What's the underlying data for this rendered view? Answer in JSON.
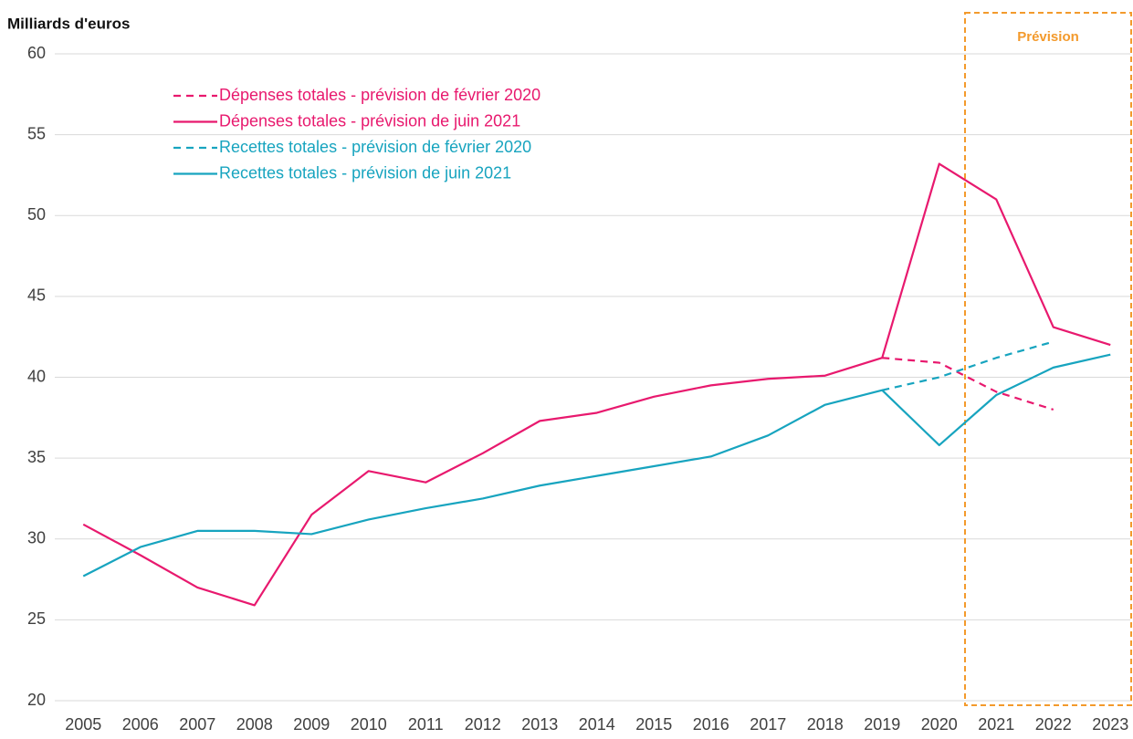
{
  "chart_data": {
    "type": "line",
    "ylabel": "Milliards d'euros",
    "forecast_label": "Prévision",
    "forecast_color": "#f39a2c",
    "categories": [
      "2005",
      "2006",
      "2007",
      "2008",
      "2009",
      "2010",
      "2011",
      "2012",
      "2013",
      "2014",
      "2015",
      "2016",
      "2017",
      "2018",
      "2019",
      "2020",
      "2021",
      "2022",
      "2023"
    ],
    "series": [
      {
        "name": "Dépenses totales - prévision de février 2020",
        "color": "#e8196e",
        "style": "dashed",
        "values": [
          null,
          null,
          null,
          null,
          null,
          null,
          null,
          null,
          null,
          null,
          null,
          null,
          null,
          null,
          41.2,
          40.9,
          39.1,
          38.0,
          null
        ]
      },
      {
        "name": "Dépenses totales - prévision de juin 2021",
        "color": "#e8196e",
        "style": "solid",
        "values": [
          30.9,
          29.0,
          27.0,
          25.9,
          31.5,
          34.2,
          33.5,
          35.3,
          37.3,
          37.8,
          38.8,
          39.5,
          39.9,
          40.1,
          41.2,
          53.2,
          51.0,
          43.1,
          42.0
        ]
      },
      {
        "name": "Recettes totales - prévision de février 2020",
        "color": "#17a4bf",
        "style": "dashed",
        "values": [
          null,
          null,
          null,
          null,
          null,
          null,
          null,
          null,
          null,
          null,
          null,
          null,
          null,
          null,
          39.2,
          40.0,
          41.2,
          42.2,
          null
        ]
      },
      {
        "name": "Recettes totales - prévision de juin 2021",
        "color": "#17a4bf",
        "style": "solid",
        "values": [
          27.7,
          29.5,
          30.5,
          30.5,
          30.3,
          31.2,
          31.9,
          32.5,
          33.3,
          33.9,
          34.5,
          35.1,
          36.4,
          38.3,
          39.2,
          35.8,
          38.9,
          40.6,
          41.4
        ]
      }
    ],
    "ylim": [
      20,
      60
    ],
    "yticks": [
      20,
      25,
      30,
      35,
      40,
      45,
      50,
      55,
      60
    ],
    "grid": true,
    "legend": "upper left",
    "forecast_start_index": 16
  }
}
